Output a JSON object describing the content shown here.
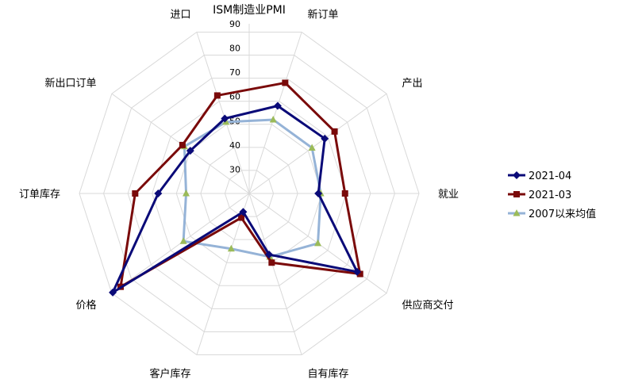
{
  "chart_data": {
    "type": "radar",
    "title": "ISM制造业PMI",
    "categories": [
      "新订单",
      "产出",
      "就业",
      "供应商交付",
      "自有库存",
      "客户库存",
      "价格",
      "订单库存",
      "新出口订单",
      "进口"
    ],
    "rlim": [
      20,
      90
    ],
    "ticks": [
      30,
      40,
      50,
      60,
      70,
      80,
      90
    ],
    "grid": true,
    "legend_position": "right",
    "series": [
      {
        "name": "2021-04",
        "color": "#0a0a78",
        "marker": "diamond",
        "values": [
          58.0,
          58.5,
          48.5,
          75.0,
          46.5,
          28.0,
          89.5,
          57.5,
          50.0,
          52.5
        ]
      },
      {
        "name": "2021-03",
        "color": "#7a0a0a",
        "marker": "square",
        "values": [
          68.0,
          63.5,
          59.5,
          76.5,
          50.0,
          30.5,
          85.5,
          67.0,
          54.0,
          62.5
        ]
      },
      {
        "name": "2007以来均值",
        "color": "#95b3d7",
        "marker": "triangle",
        "values": [
          52.0,
          52.0,
          49.5,
          55.0,
          47.5,
          44.0,
          53.5,
          46.0,
          53.0,
          51.0
        ]
      }
    ]
  }
}
